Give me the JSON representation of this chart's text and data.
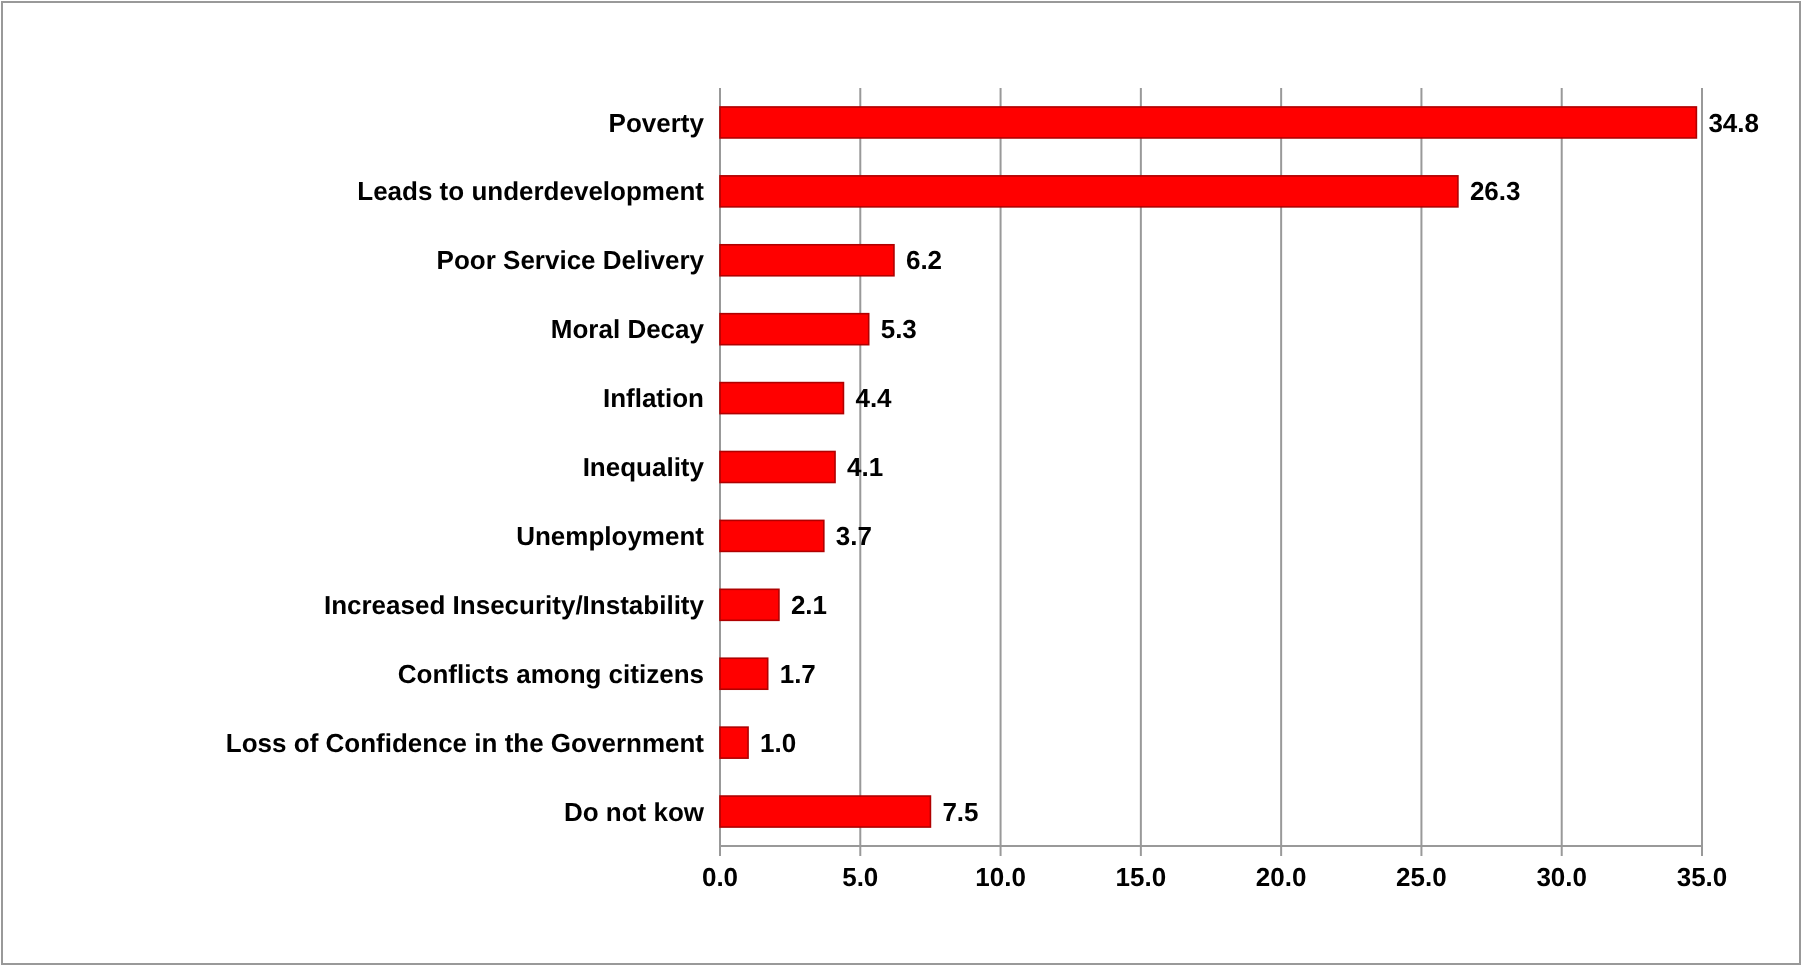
{
  "chart_data": {
    "type": "bar",
    "orientation": "horizontal",
    "categories": [
      "Poverty",
      "Leads to underdevelopment",
      "Poor Service Delivery",
      "Moral Decay",
      "Inflation",
      "Inequality",
      "Unemployment",
      "Increased Insecurity/Instability",
      "Conflicts among citizens",
      "Loss of Confidence in the Government",
      "Do not kow"
    ],
    "values": [
      34.8,
      26.3,
      6.2,
      5.3,
      4.4,
      4.1,
      3.7,
      2.1,
      1.7,
      1.0,
      7.5
    ],
    "value_labels": [
      "34.8",
      "26.3",
      "6.2",
      "5.3",
      "4.4",
      "4.1",
      "3.7",
      "2.1",
      "1.7",
      "1.0",
      "7.5"
    ],
    "color": "#ff0000",
    "xlim": [
      0,
      35
    ],
    "xticks": [
      {
        "value": 0,
        "label": "0.0"
      },
      {
        "value": 5,
        "label": "5.0"
      },
      {
        "value": 10,
        "label": "10.0"
      },
      {
        "value": 15,
        "label": "15.0"
      },
      {
        "value": 20,
        "label": "20.0"
      },
      {
        "value": 25,
        "label": "25.0"
      },
      {
        "value": 30,
        "label": "30.0"
      },
      {
        "value": 35,
        "label": "35.0"
      }
    ],
    "grid": "x"
  }
}
